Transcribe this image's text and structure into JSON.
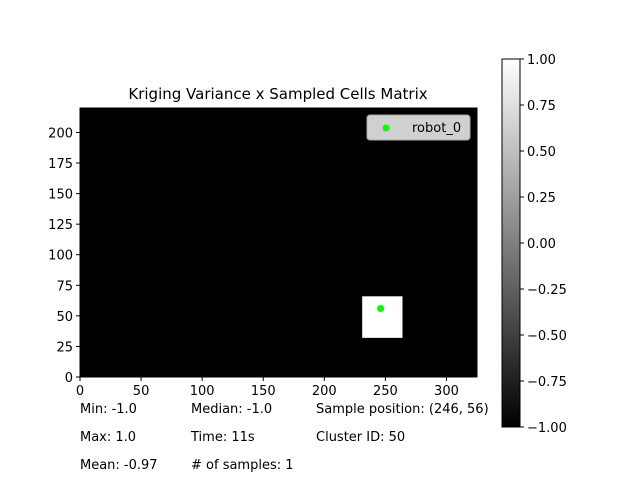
{
  "chart_data": {
    "type": "heatmap",
    "title": "Kriging Variance x Sampled Cells Matrix",
    "xlabel": "",
    "ylabel": "",
    "xlim": [
      0,
      325
    ],
    "ylim": [
      0,
      220
    ],
    "xticks": [
      0,
      50,
      100,
      150,
      200,
      250,
      300
    ],
    "yticks": [
      0,
      25,
      50,
      75,
      100,
      125,
      150,
      175,
      200
    ],
    "grid": false,
    "background_value": -1.0,
    "cells": [
      {
        "x0": 231,
        "x1": 264,
        "y0": 32,
        "y1": 66,
        "value": 1.0
      }
    ],
    "series": [
      {
        "name": "robot_0",
        "type": "scatter",
        "color": "#00ff00",
        "x": [
          246
        ],
        "y": [
          56
        ]
      }
    ],
    "legend": {
      "placement": "top-right",
      "entries": [
        "robot_0"
      ]
    },
    "colorbar": {
      "range": [
        -1.0,
        1.0
      ],
      "colormap": "gray",
      "ticks": [
        "1.00",
        "0.75",
        "0.50",
        "0.25",
        "0.00",
        "−0.25",
        "−0.50",
        "−0.75",
        "−1.00"
      ]
    }
  },
  "stats": {
    "min": "Min: -1.0",
    "median": "Median: -1.0",
    "sample_position": "Sample position: (246, 56)",
    "max": "Max: 1.0",
    "time": "Time: 11s",
    "cluster_id": "Cluster ID: 50",
    "mean": "Mean: -0.97",
    "num_samples": "# of samples: 1"
  }
}
